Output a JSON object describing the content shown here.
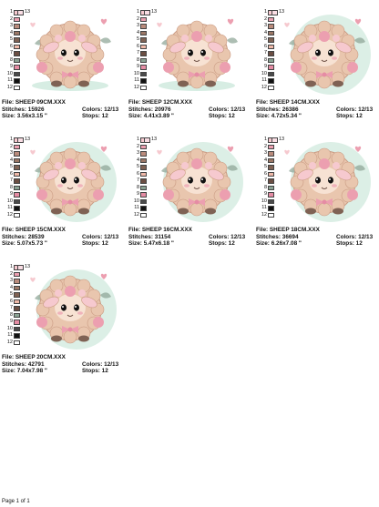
{
  "palette_colors": [
    "#f6c9cf",
    "#ec9fb0",
    "#b98b7c",
    "#9b7766",
    "#7f6254",
    "#eeb8a8",
    "#6b4e43",
    "#8aa293",
    "#e58ca4",
    "#4a4a4a",
    "#111111",
    "#ffffff",
    "#f9dde4"
  ],
  "designs": [
    {
      "file": "File: SHEEP 09CM.XXX",
      "stitches": "Stitches: 15926",
      "colors": "Colors: 12/13",
      "size": "Size: 3.56x3.15 \"",
      "stops": "Stops: 12",
      "variant": "full"
    },
    {
      "file": "File: SHEEP 12CM.XXX",
      "stitches": "Stitches: 20976",
      "colors": "Colors: 12/13",
      "size": "Size: 4.41x3.89 \"",
      "stops": "Stops: 12",
      "variant": "full"
    },
    {
      "file": "File: SHEEP 14CM.XXX",
      "stitches": "Stitches: 26386",
      "colors": "Colors: 12/13",
      "size": "Size: 4.72x5.34 \"",
      "stops": "Stops: 12",
      "variant": "round"
    },
    {
      "file": "File: SHEEP 15CM.XXX",
      "stitches": "Stitches: 28539",
      "colors": "Colors: 12/13",
      "size": "Size: 5.07x5.73 \"",
      "stops": "Stops: 12",
      "variant": "round"
    },
    {
      "file": "File: SHEEP 16CM.XXX",
      "stitches": "Stitches: 31154",
      "colors": "Colors: 12/13",
      "size": "Size: 5.47x6.18 \"",
      "stops": "Stops: 12",
      "variant": "round"
    },
    {
      "file": "File: SHEEP 18CM.XXX",
      "stitches": "Stitches: 36694",
      "colors": "Colors: 12/13",
      "size": "Size: 6.26x7.08 \"",
      "stops": "Stops: 12",
      "variant": "round"
    },
    {
      "file": "File: SHEEP 20CM.XXX",
      "stitches": "Stitches: 42791",
      "colors": "Colors: 12/13",
      "size": "Size: 7.04x7.98 \"",
      "stops": "Stops: 12",
      "variant": "round"
    }
  ],
  "footer": "Page 1 of 1"
}
